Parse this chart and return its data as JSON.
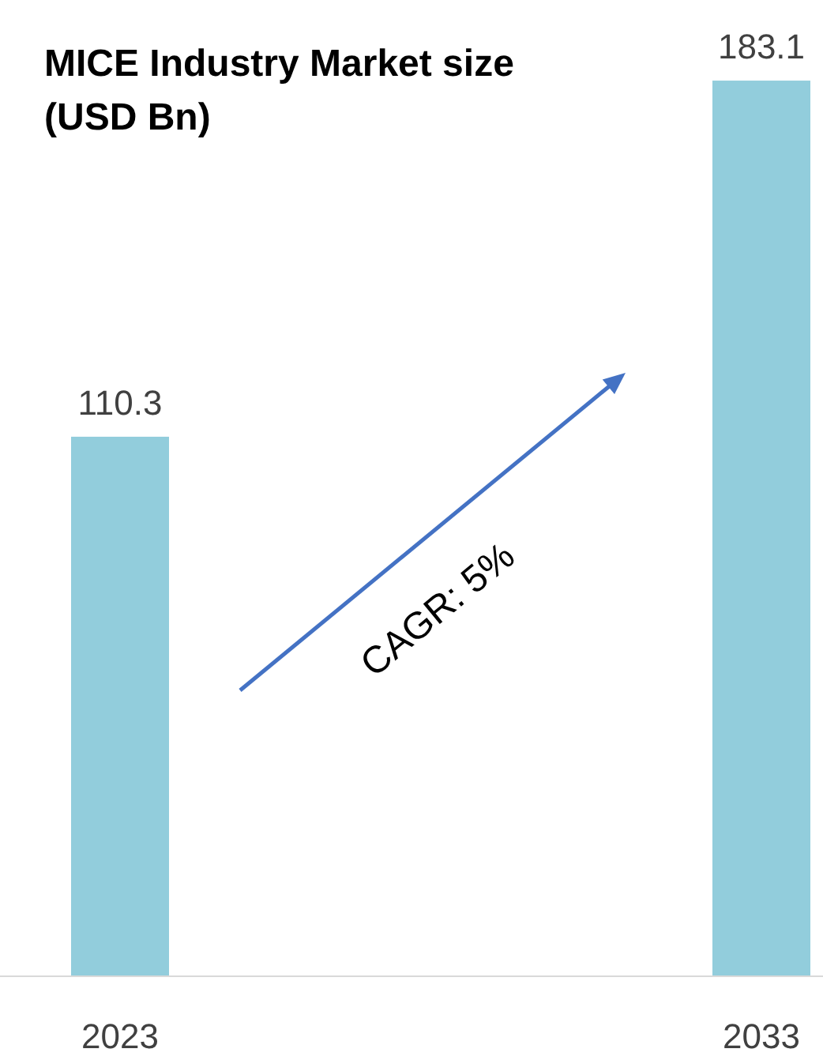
{
  "chart_data": {
    "type": "bar",
    "title": "MICE Industry Market size (USD Bn)",
    "categories": [
      "2023",
      "2033"
    ],
    "values": [
      110.3,
      183.1
    ],
    "color": "#92cddc",
    "data_labels": true,
    "relative": false,
    "annotations": [
      "CAGR: 5%"
    ]
  }
}
